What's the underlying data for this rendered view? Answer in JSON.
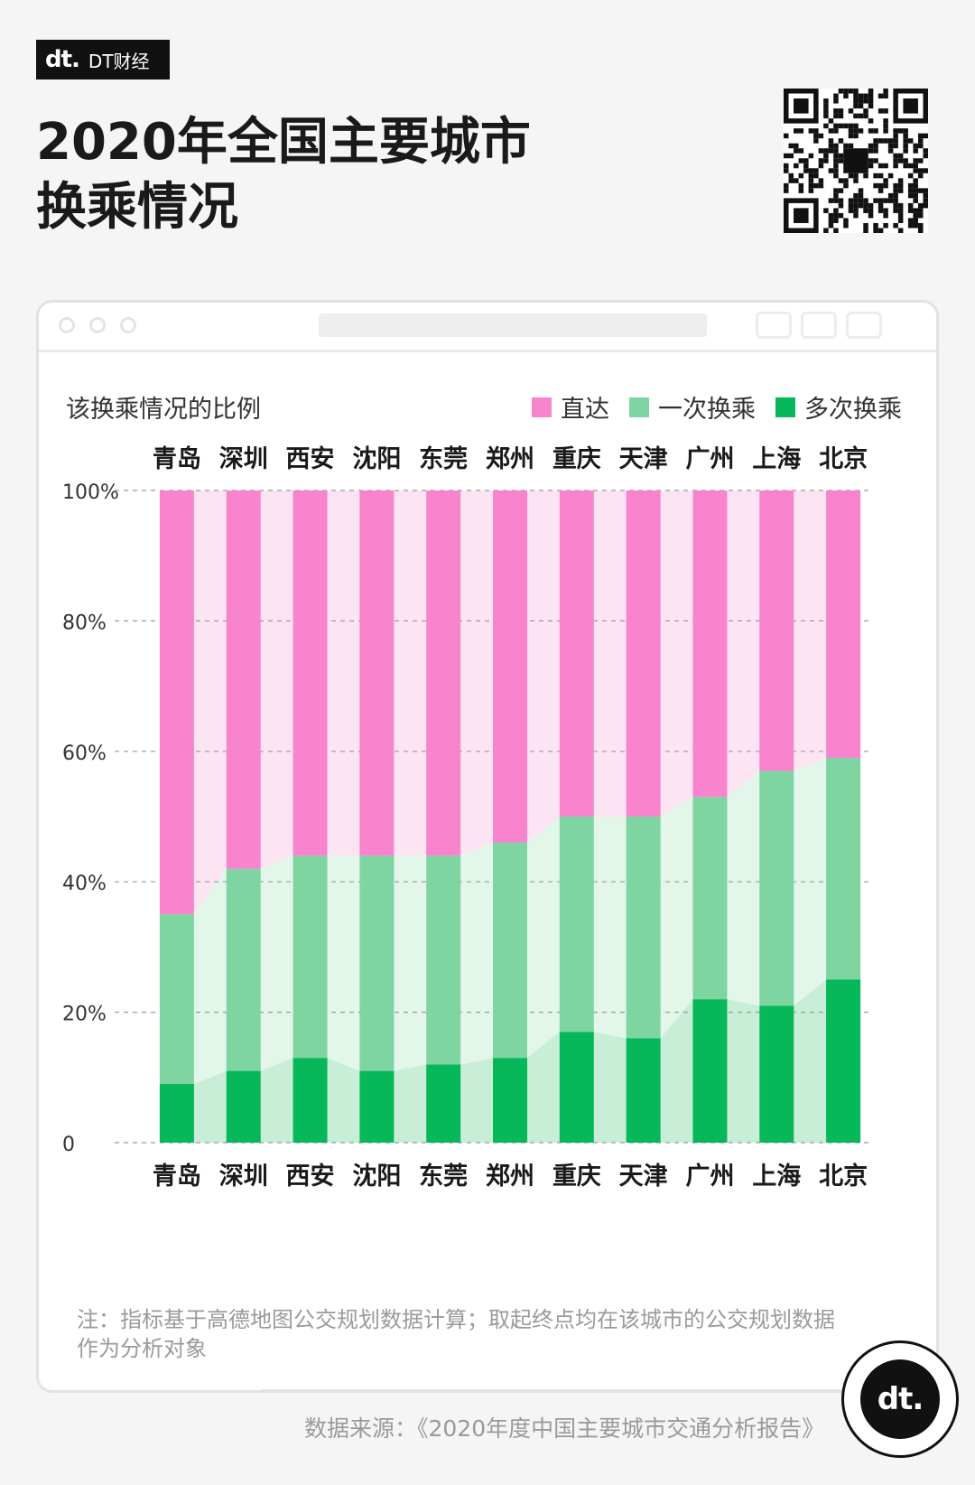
{
  "brand": {
    "logo": "dt.",
    "name": "DT财经"
  },
  "title": {
    "line1": "2020年全国主要城市",
    "line2": "换乘情况"
  },
  "badge_logo": "dt.",
  "note": "注：指标基于高德地图公交规划数据计算；取起终点均在该城市的公交规划数据作为分析对象",
  "source": "数据来源：《2020年度中国主要城市交通分析报告》",
  "colors": {
    "direct": "#f784cd",
    "direct_light": "#fde4f2",
    "once": "#7fd5a2",
    "once_light": "#e3f6ea",
    "multi": "#06b85a",
    "multi_light": "#c9eed8"
  },
  "chart_data": {
    "type": "bar",
    "stacked": true,
    "ylabel": "该换乘情况的比例",
    "ylim": [
      0,
      100
    ],
    "yticks": [
      {
        "value": 0,
        "label": "0"
      },
      {
        "value": 20,
        "label": "20%"
      },
      {
        "value": 40,
        "label": "40%"
      },
      {
        "value": 60,
        "label": "60%"
      },
      {
        "value": 80,
        "label": "80%"
      },
      {
        "value": 100,
        "label": "100%"
      }
    ],
    "categories": [
      "青岛",
      "深圳",
      "西安",
      "沈阳",
      "东莞",
      "郑州",
      "重庆",
      "天津",
      "广州",
      "上海",
      "北京"
    ],
    "legend_position": "top-right",
    "series": [
      {
        "name": "多次换乘",
        "color": "#06b85a",
        "values": [
          9,
          11,
          13,
          11,
          12,
          13,
          17,
          16,
          22,
          21,
          25
        ]
      },
      {
        "name": "一次换乘",
        "color": "#7fd5a2",
        "values": [
          26,
          31,
          31,
          33,
          32,
          33,
          33,
          34,
          31,
          36,
          34
        ]
      },
      {
        "name": "直达",
        "color": "#f784cd",
        "values": [
          65,
          58,
          56,
          56,
          56,
          54,
          50,
          50,
          47,
          43,
          41
        ]
      }
    ],
    "legend": [
      "直达",
      "一次换乘",
      "多次换乘"
    ]
  }
}
